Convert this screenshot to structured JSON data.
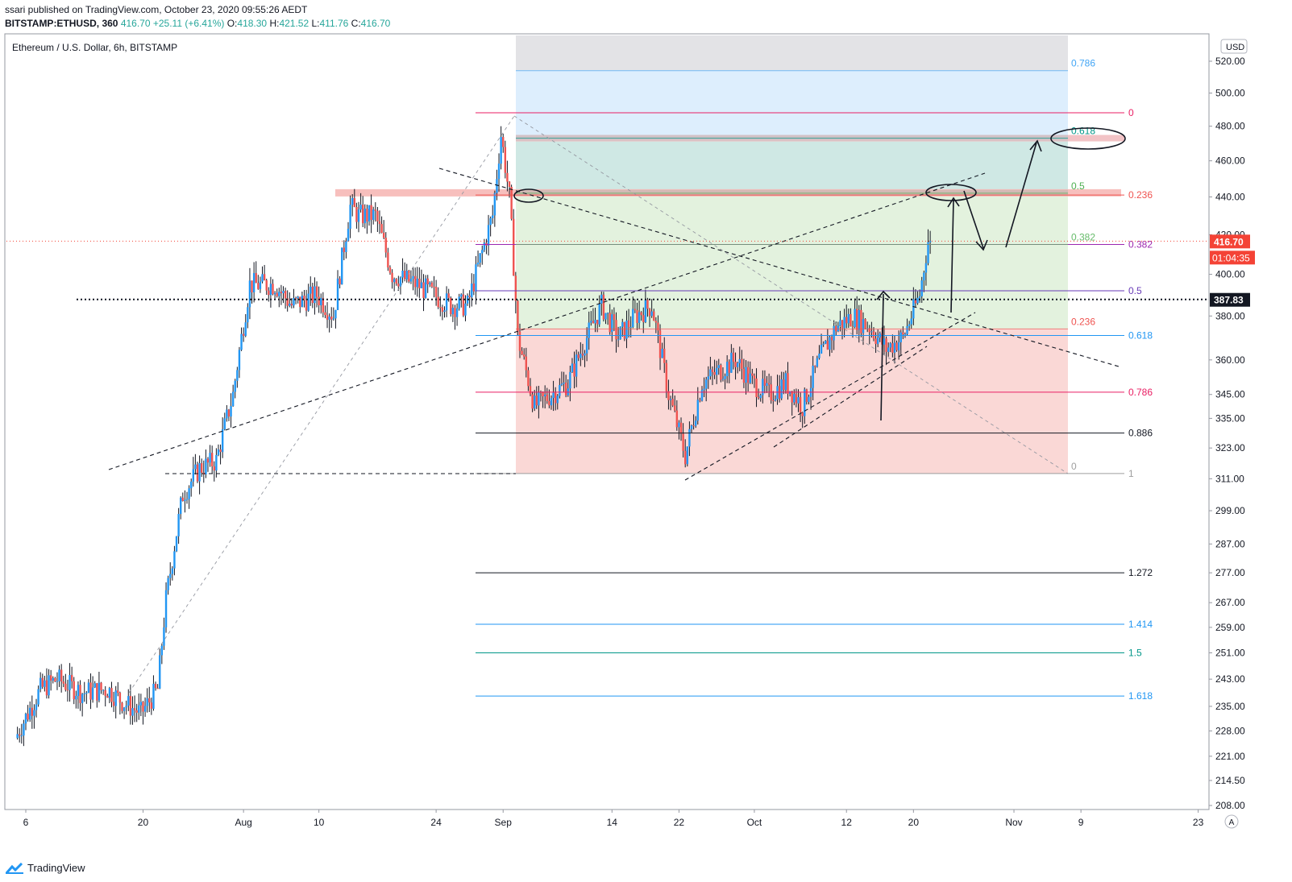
{
  "header": {
    "published": "ssari published on TradingView.com, October 23, 2020 09:55:26 AEDT",
    "symbol": "BITSTAMP:ETHUSD, 360",
    "last": "416.70",
    "change": "+25.11 (+6.41%)",
    "o_label": "O:",
    "o": "418.30",
    "h_label": "H:",
    "h": "421.52",
    "l_label": "L:",
    "l": "411.76",
    "c_label": "C:",
    "c": "416.70"
  },
  "footer": {
    "brand": "TradingView"
  },
  "colors": {
    "up": "#26a69a",
    "down": "#ef5350",
    "up_body": "#2196f3",
    "price_tag": "#f44336"
  },
  "chart_data": {
    "type": "candlestick",
    "title": "Ethereum / U.S. Dollar, 6h, BITSTAMP",
    "currency_button": "USD",
    "y_scale": "log",
    "y_ticks": [
      "520.00",
      "500.00",
      "480.00",
      "460.00",
      "440.00",
      "420.00",
      "400.00",
      "380.00",
      "360.00",
      "345.00",
      "335.00",
      "323.00",
      "311.00",
      "299.00",
      "287.00",
      "277.00",
      "267.00",
      "259.00",
      "251.00",
      "243.00",
      "235.00",
      "228.00",
      "221.00",
      "214.50",
      "208.00"
    ],
    "x_ticks": [
      "6",
      "20",
      "Aug",
      "10",
      "24",
      "Sep",
      "14",
      "22",
      "Oct",
      "12",
      "20",
      "Nov",
      "9",
      "23"
    ],
    "x_range": [
      "2020-07-06",
      "2020-11-23"
    ],
    "last_price": "416.70",
    "countdown": "01:04:35",
    "marked_level": "387.83",
    "axis_corner_button": "A",
    "price_path": [
      [
        "2020-07-05",
        226
      ],
      [
        "2020-07-08",
        240
      ],
      [
        "2020-07-10",
        243
      ],
      [
        "2020-07-13",
        239
      ],
      [
        "2020-07-16",
        240
      ],
      [
        "2020-07-18",
        236
      ],
      [
        "2020-07-20",
        233
      ],
      [
        "2020-07-22",
        240
      ],
      [
        "2020-07-23",
        268
      ],
      [
        "2020-07-25",
        305
      ],
      [
        "2020-07-27",
        315
      ],
      [
        "2020-07-29",
        318
      ],
      [
        "2020-07-31",
        345
      ],
      [
        "2020-08-02",
        395
      ],
      [
        "2020-08-05",
        395
      ],
      [
        "2020-08-07",
        385
      ],
      [
        "2020-08-10",
        390
      ],
      [
        "2020-08-12",
        380
      ],
      [
        "2020-08-14",
        435
      ],
      [
        "2020-08-15",
        430
      ],
      [
        "2020-08-17",
        430
      ],
      [
        "2020-08-19",
        400
      ],
      [
        "2020-08-22",
        395
      ],
      [
        "2020-08-24",
        390
      ],
      [
        "2020-08-26",
        385
      ],
      [
        "2020-08-28",
        385
      ],
      [
        "2020-08-31",
        430
      ],
      [
        "2020-09-01",
        475
      ],
      [
        "2020-09-02",
        440
      ],
      [
        "2020-09-03",
        370
      ],
      [
        "2020-09-05",
        340
      ],
      [
        "2020-09-07",
        345
      ],
      [
        "2020-09-09",
        350
      ],
      [
        "2020-09-11",
        368
      ],
      [
        "2020-09-13",
        385
      ],
      [
        "2020-09-15",
        370
      ],
      [
        "2020-09-17",
        380
      ],
      [
        "2020-09-19",
        385
      ],
      [
        "2020-09-21",
        345
      ],
      [
        "2020-09-23",
        320
      ],
      [
        "2020-09-25",
        350
      ],
      [
        "2020-09-27",
        355
      ],
      [
        "2020-09-29",
        360
      ],
      [
        "2020-10-01",
        350
      ],
      [
        "2020-10-03",
        345
      ],
      [
        "2020-10-05",
        350
      ],
      [
        "2020-10-07",
        340
      ],
      [
        "2020-10-09",
        360
      ],
      [
        "2020-10-11",
        375
      ],
      [
        "2020-10-13",
        380
      ],
      [
        "2020-10-15",
        375
      ],
      [
        "2020-10-17",
        365
      ],
      [
        "2020-10-19",
        370
      ],
      [
        "2020-10-21",
        390
      ],
      [
        "2020-10-22",
        416.7
      ]
    ],
    "fib_retracement_1": {
      "levels": [
        "0",
        "0.236",
        "0.382",
        "0.5",
        "0.618",
        "0.786",
        "0.886",
        "1",
        "1.272",
        "1.414",
        "1.5",
        "1.618"
      ],
      "prices": [
        488,
        441,
        415,
        392,
        371,
        346,
        329,
        313,
        277,
        260,
        251,
        238
      ]
    },
    "fib_retracement_2": {
      "levels": [
        "0",
        "0.236",
        "0.382",
        "0.5",
        "0.618",
        "0.786"
      ],
      "prices": [
        313,
        374,
        415,
        442,
        473,
        514
      ]
    },
    "resistance_zones": [
      442,
      473
    ]
  }
}
